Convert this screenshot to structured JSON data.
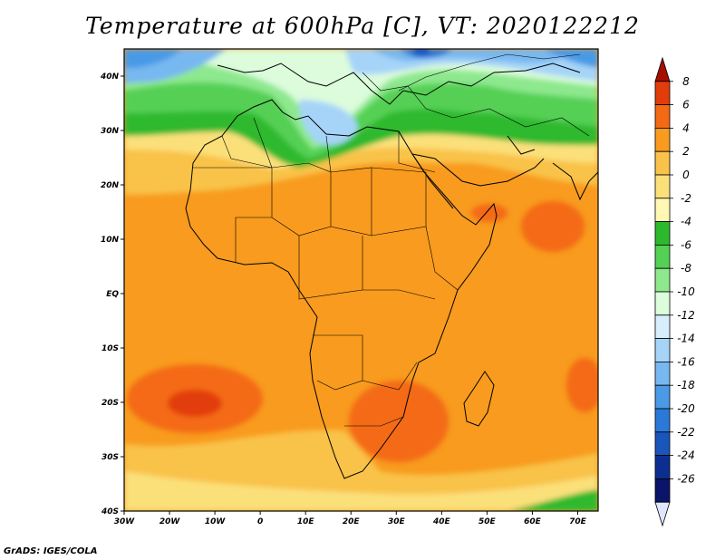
{
  "title": "Temperature at 600hPa [C], VT: 2020122212",
  "credit": "GrADS: IGES/COLA",
  "map": {
    "lon_ticks": [
      "30W",
      "20W",
      "10W",
      "0",
      "10E",
      "20E",
      "30E",
      "40E",
      "50E",
      "60E",
      "70E"
    ],
    "lat_ticks": [
      "40N",
      "30N",
      "20N",
      "10N",
      "EQ",
      "10S",
      "20S",
      "30S",
      "40S"
    ]
  },
  "legend": {
    "labels": [
      "8",
      "6",
      "4",
      "2",
      "0",
      "-2",
      "-4",
      "-6",
      "-8",
      "-10",
      "-12",
      "-14",
      "-16",
      "-18",
      "-20",
      "-22",
      "-24",
      "-26"
    ],
    "colors": [
      "#a50f00",
      "#e23c0a",
      "#f46a14",
      "#f89b1e",
      "#f9c24a",
      "#fbe07a",
      "#fff7b4",
      "#2db92d",
      "#54d054",
      "#8ee88e",
      "#dcfcdc",
      "#d8eefc",
      "#a6d4f8",
      "#78b8f0",
      "#4a9ae6",
      "#2c78d8",
      "#1a55bc",
      "#0c2e90",
      "#0a1468",
      "#e0e6ff"
    ]
  }
}
